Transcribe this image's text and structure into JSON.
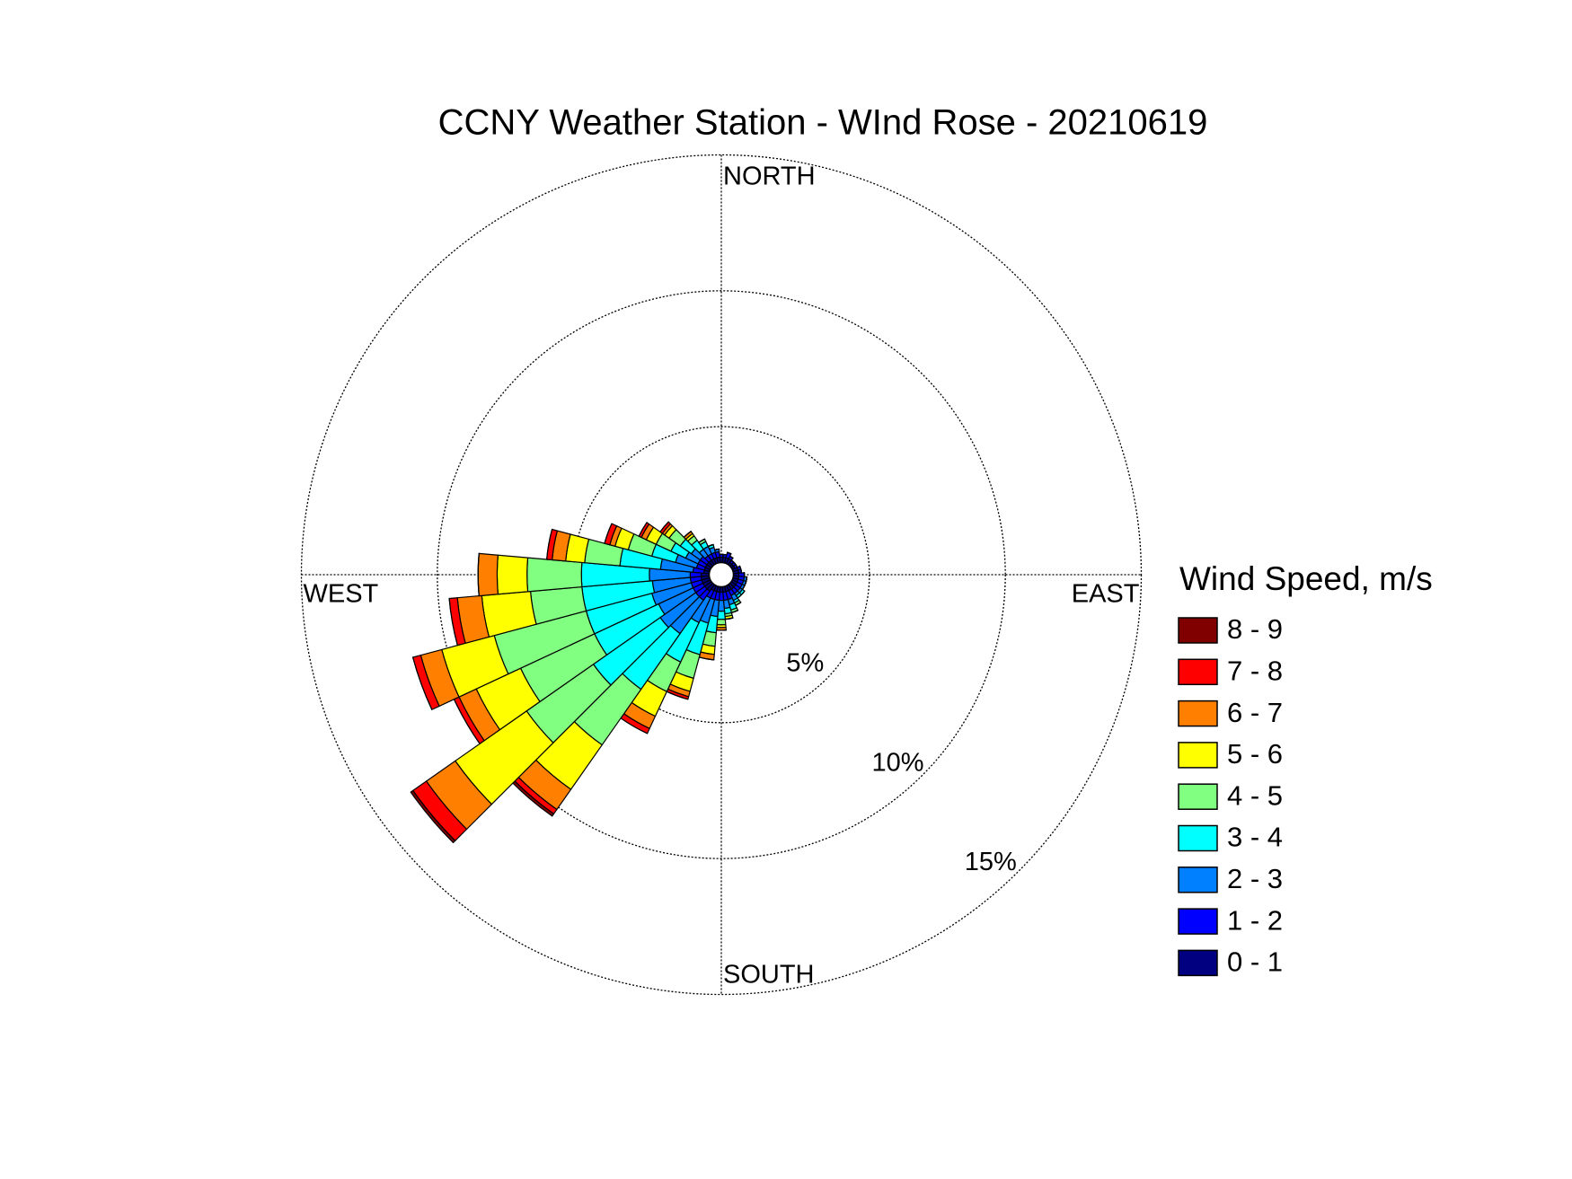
{
  "chart_data": {
    "type": "wind-rose",
    "title": "CCNY Weather Station - WInd Rose - 20210619",
    "legend_title": "Wind Speed, m/s",
    "direction_labels": {
      "north": "NORTH",
      "east": "EAST",
      "south": "SOUTH",
      "west": "WEST"
    },
    "rlim": [
      0,
      15
    ],
    "rticks": [
      {
        "value": 5,
        "label": "5%"
      },
      {
        "value": 10,
        "label": "10%"
      },
      {
        "value": 15,
        "label": "15%"
      }
    ],
    "theta": [
      0,
      10,
      20,
      30,
      40,
      50,
      60,
      70,
      80,
      90,
      100,
      110,
      120,
      130,
      140,
      150,
      160,
      170,
      180,
      190,
      200,
      210,
      220,
      230,
      240,
      250,
      260,
      270,
      280,
      290,
      300,
      310,
      320,
      330,
      340,
      350
    ],
    "series": [
      {
        "name": "0 - 1",
        "color": "#000080",
        "values": [
          0.2,
          0.2,
          0.2,
          0.2,
          0.1,
          0.1,
          0.1,
          0.2,
          0.2,
          0.2,
          0.2,
          0.2,
          0.2,
          0.2,
          0.2,
          0.2,
          0.2,
          0.2,
          0.2,
          0.2,
          0.2,
          0.2,
          0.3,
          0.3,
          0.3,
          0.3,
          0.3,
          0.3,
          0.2,
          0.2,
          0.2,
          0.2,
          0.2,
          0.2,
          0.2,
          0.2
        ]
      },
      {
        "name": "1 - 2",
        "color": "#0000ff",
        "values": [
          0.1,
          0.1,
          0.2,
          0.1,
          0.1,
          0.1,
          0.1,
          0.1,
          0.1,
          0.2,
          0.2,
          0.2,
          0.2,
          0.2,
          0.2,
          0.2,
          0.3,
          0.3,
          0.3,
          0.3,
          0.3,
          0.3,
          0.4,
          0.4,
          0.4,
          0.4,
          0.4,
          0.4,
          0.4,
          0.3,
          0.3,
          0.3,
          0.2,
          0.2,
          0.2,
          0.2
        ]
      },
      {
        "name": "2 - 3",
        "color": "#0080ff",
        "values": [
          0,
          0,
          0,
          0,
          0,
          0,
          0,
          0,
          0,
          0,
          0.1,
          0.1,
          0.1,
          0.1,
          0.1,
          0.2,
          0.2,
          0.3,
          0.4,
          0.6,
          0.9,
          1.0,
          1.5,
          1.6,
          1.4,
          1.5,
          1.4,
          1.5,
          1.2,
          0.8,
          0.5,
          0.4,
          0.3,
          0.3,
          0.2,
          0.1
        ]
      },
      {
        "name": "3 - 4",
        "color": "#00ffff",
        "values": [
          0,
          0,
          0,
          0,
          0,
          0,
          0,
          0,
          0,
          0,
          0,
          0,
          0,
          0.1,
          0.1,
          0.1,
          0.2,
          0.2,
          0.3,
          0.6,
          1.2,
          1.6,
          2.5,
          3.0,
          2.6,
          2.5,
          2.6,
          2.5,
          1.5,
          0.9,
          0.6,
          0.5,
          0.4,
          0.2,
          0.1,
          0
        ]
      },
      {
        "name": "4 - 5",
        "color": "#80ff80",
        "values": [
          0,
          0,
          0,
          0,
          0,
          0,
          0,
          0,
          0,
          0,
          0,
          0,
          0,
          0,
          0,
          0.1,
          0.1,
          0.1,
          0.2,
          0.5,
          0.9,
          1.2,
          2.5,
          3.0,
          3.0,
          3.5,
          1.9,
          2.0,
          1.3,
          0.9,
          0.6,
          0.5,
          0.2,
          0.1,
          0,
          0
        ]
      },
      {
        "name": "5 - 6",
        "color": "#ffff00",
        "values": [
          0,
          0,
          0,
          0,
          0,
          0,
          0,
          0,
          0,
          0,
          0,
          0,
          0,
          0,
          0,
          0,
          0,
          0.1,
          0.1,
          0.3,
          0.5,
          1.0,
          2.0,
          3.2,
          1.8,
          2.0,
          1.8,
          1.1,
          0.7,
          0.5,
          0.4,
          0.2,
          0.1,
          0,
          0,
          0
        ]
      },
      {
        "name": "6 - 7",
        "color": "#ff8000",
        "values": [
          0,
          0,
          0,
          0,
          0,
          0,
          0,
          0,
          0,
          0,
          0,
          0,
          0,
          0,
          0,
          0,
          0,
          0,
          0.1,
          0.2,
          0.2,
          0.5,
          0.9,
          1.3,
          0.7,
          0.8,
          0.9,
          0.7,
          0.5,
          0.2,
          0.2,
          0.1,
          0.1,
          0,
          0,
          0
        ]
      },
      {
        "name": "7 - 8",
        "color": "#ff0000",
        "values": [
          0,
          0,
          0,
          0,
          0,
          0,
          0,
          0,
          0,
          0,
          0,
          0,
          0,
          0,
          0,
          0,
          0,
          0,
          0,
          0,
          0.1,
          0.2,
          0.2,
          0.6,
          0.2,
          0.3,
          0.3,
          0,
          0.2,
          0.2,
          0.1,
          0.1,
          0,
          0,
          0,
          0
        ]
      },
      {
        "name": "8 - 9",
        "color": "#800000",
        "values": [
          0,
          0,
          0,
          0,
          0,
          0,
          0,
          0,
          0,
          0,
          0,
          0,
          0,
          0,
          0,
          0,
          0,
          0,
          0,
          0,
          0,
          0,
          0.1,
          0.1,
          0,
          0,
          0,
          0,
          0,
          0,
          0,
          0,
          0,
          0,
          0,
          0
        ]
      }
    ]
  }
}
